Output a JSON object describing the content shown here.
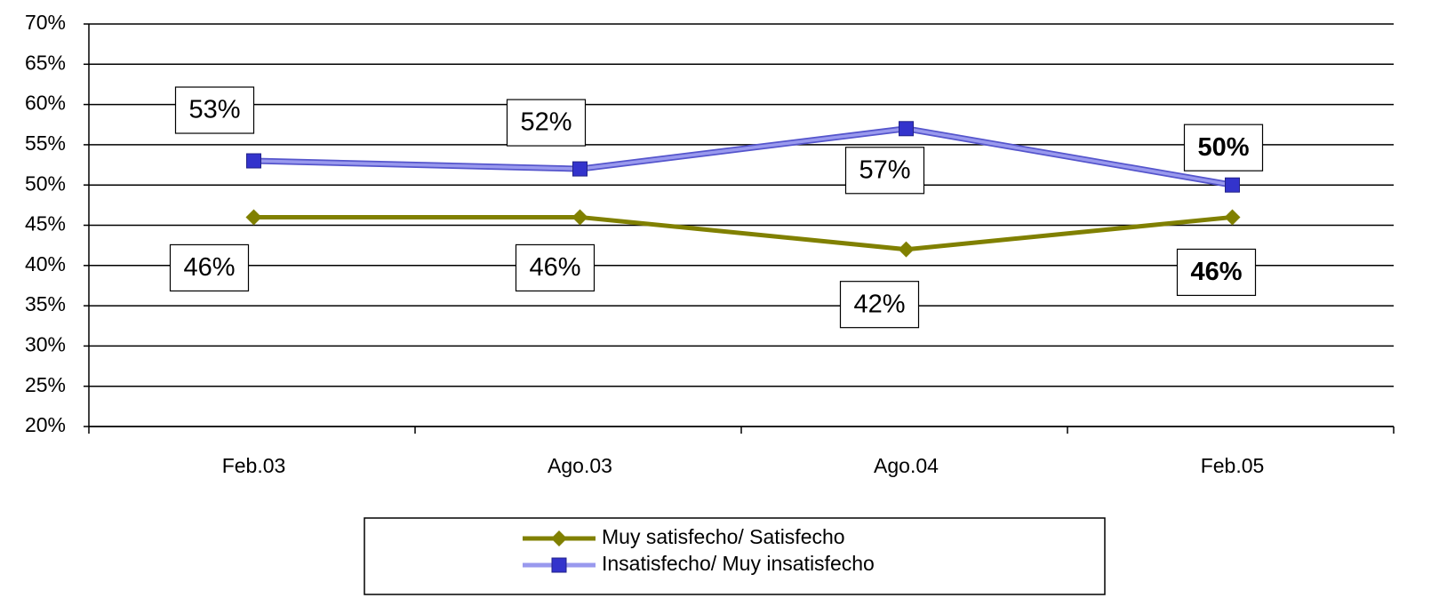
{
  "chart_data": {
    "type": "line",
    "categories": [
      "Feb.03",
      "Ago.03",
      "Ago.04",
      "Feb.05"
    ],
    "series": [
      {
        "name": "Muy satisfecho/ Satisfecho",
        "color": "#808000",
        "marker": "diamond",
        "values": [
          46,
          46,
          42,
          46
        ],
        "value_labels": [
          "46%",
          "46%",
          "42%",
          "46%"
        ]
      },
      {
        "name": "Insatisfecho/ Muy insatisfecho",
        "color": "#3333cc",
        "marker": "square",
        "values": [
          53,
          52,
          57,
          50
        ],
        "value_labels": [
          "53%",
          "52%",
          "57%",
          "50%"
        ]
      }
    ],
    "ylim": [
      20,
      70
    ],
    "yticks": [
      {
        "value": 20,
        "label": "20%"
      },
      {
        "value": 25,
        "label": "25%"
      },
      {
        "value": 30,
        "label": "30%"
      },
      {
        "value": 35,
        "label": "35%"
      },
      {
        "value": 40,
        "label": "40%"
      },
      {
        "value": 45,
        "label": "45%"
      },
      {
        "value": 50,
        "label": "50%"
      },
      {
        "value": 55,
        "label": "55%"
      },
      {
        "value": 60,
        "label": "60%"
      },
      {
        "value": 65,
        "label": "65%"
      },
      {
        "value": 70,
        "label": "70%"
      }
    ],
    "grid": true,
    "legend": "bottom"
  }
}
